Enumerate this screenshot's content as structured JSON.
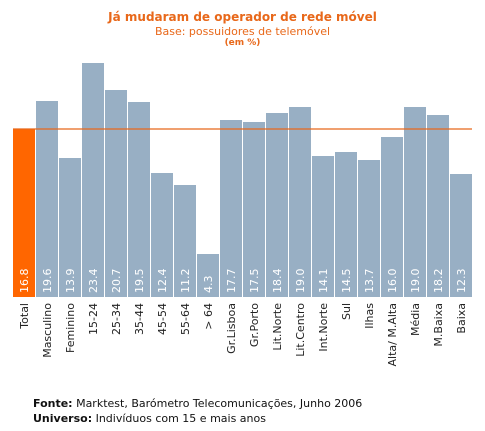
{
  "colors": {
    "highlight_bar": "#ff6600",
    "bar": "#98afc4",
    "reference_line": "#e8681a",
    "title": "#e8681a",
    "value_label": "#ffffff"
  },
  "chart_data": {
    "type": "bar",
    "title": "Já mudaram de operador de rede móvel",
    "subtitle": "Base: possuidores de telemóvel",
    "unit": "(em %)",
    "categories": [
      "Total",
      "Masculino",
      "Feminino",
      "15-24",
      "25-34",
      "35-44",
      "45-54",
      "55-64",
      "> 64",
      "Gr.Lisboa",
      "Gr.Porto",
      "Lit.Norte",
      "Lit.Centro",
      "Int.Norte",
      "Sul",
      "Ilhas",
      "Alta/ M.Alta",
      "Média",
      "M.Baixa",
      "Baixa"
    ],
    "values": [
      16.8,
      19.6,
      13.9,
      23.4,
      20.7,
      19.5,
      12.4,
      11.2,
      4.3,
      17.7,
      17.5,
      18.4,
      19.0,
      14.1,
      14.5,
      13.7,
      16.0,
      19.0,
      18.2,
      12.3
    ],
    "value_labels": [
      "16.8",
      "19.6",
      "13.9",
      "23.4",
      "20.7",
      "19.5",
      "12.4",
      "11.2",
      "4.3",
      "17.7",
      "17.5",
      "18.4",
      "19.0",
      "14.1",
      "14.5",
      "13.7",
      "16.0",
      "19.0",
      "18.2",
      "12.3"
    ],
    "highlight_category": "Total",
    "reference_line": 16.8,
    "ylim": [
      0,
      25
    ],
    "grid": false,
    "legend": "none"
  },
  "footer": {
    "source_label": "Fonte:",
    "source_text": " Marktest, Barómetro Telecomunicações, Junho 2006",
    "universe_label": "Universo:",
    "universe_text": " Indivíduos com 15 e mais anos"
  }
}
